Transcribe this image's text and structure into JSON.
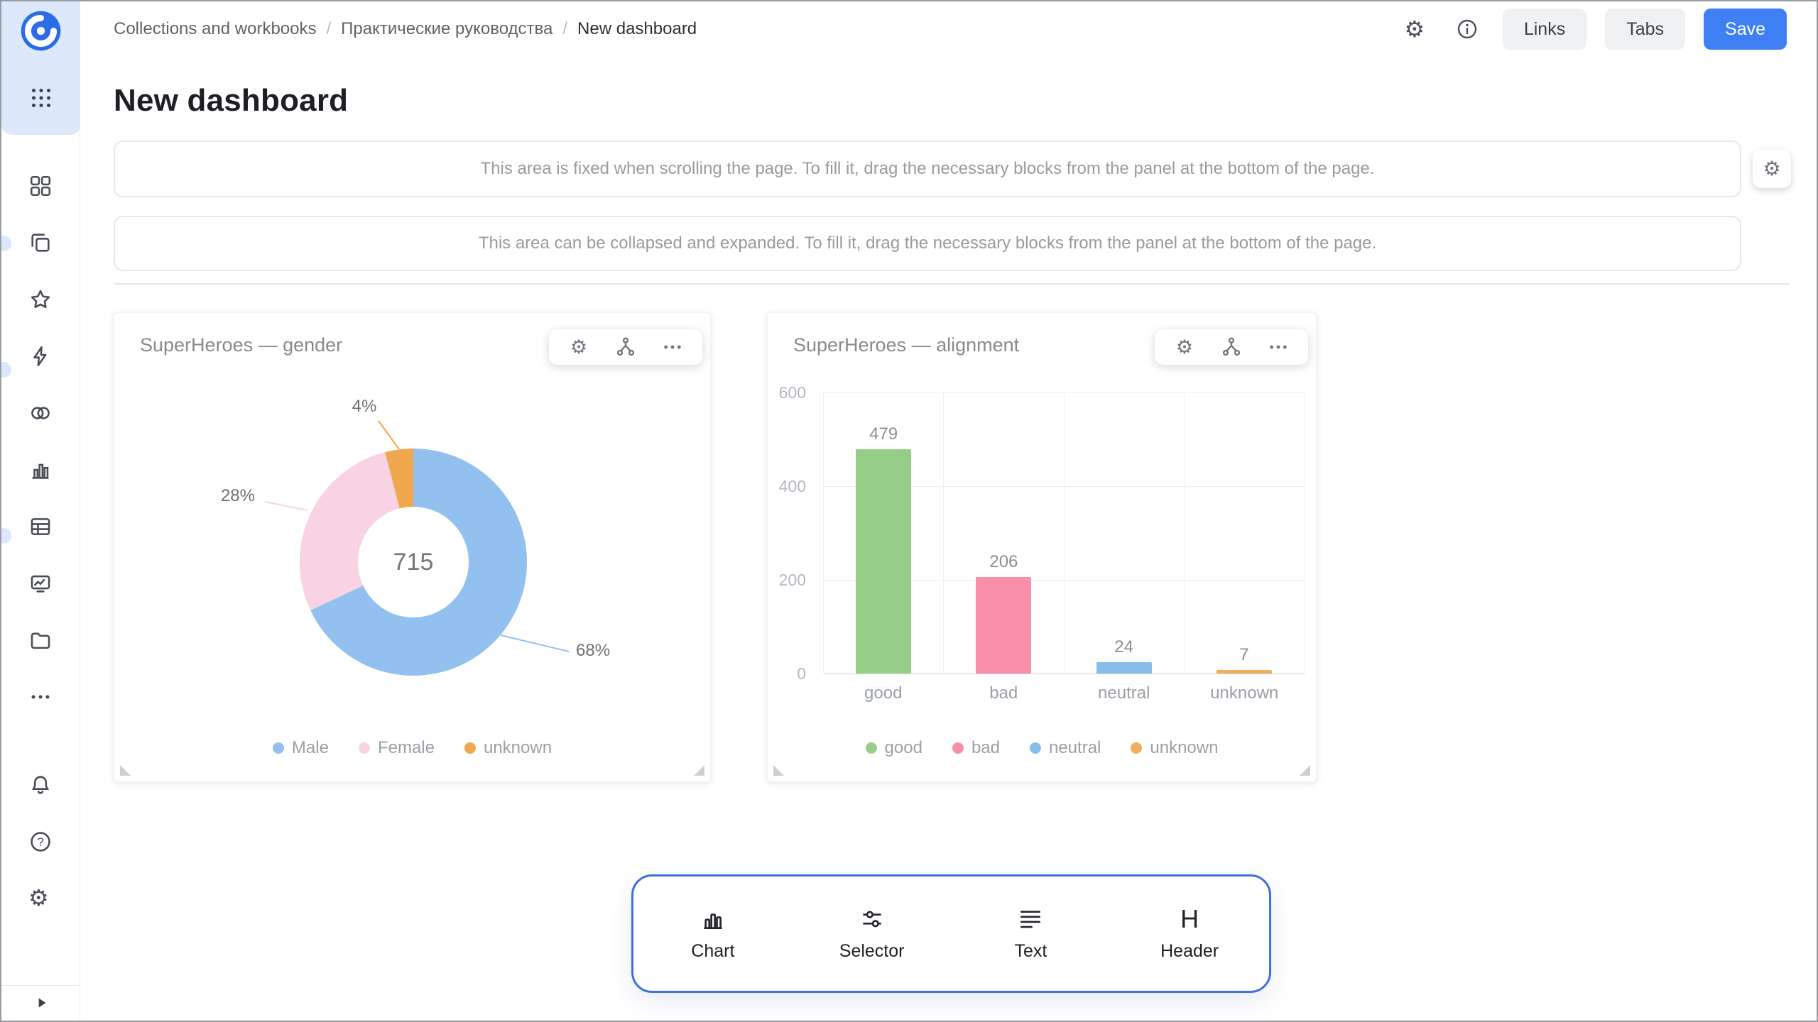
{
  "topbar": {
    "breadcrumbs": [
      "Collections and workbooks",
      "Практические руководства",
      "New dashboard"
    ],
    "separator": "/",
    "buttons": {
      "links": "Links",
      "tabs": "Tabs",
      "save": "Save"
    },
    "icons": [
      "settings-gear-icon",
      "info-icon"
    ]
  },
  "page": {
    "title": "New dashboard"
  },
  "placeholders": {
    "fixed_text": "This area is fixed when scrolling the page. To fill it, drag the necessary blocks from the panel at the bottom of the page.",
    "collapsible_text": "This area can be collapsed and expanded. To fill it, drag the necessary blocks from the panel at the bottom of the page."
  },
  "chart_data": [
    {
      "type": "pie",
      "subtype": "donut",
      "title": "SuperHeroes — gender",
      "categories": [
        "Male",
        "Female",
        "unknown"
      ],
      "values_percent": [
        68,
        28,
        4
      ],
      "center_total": 715,
      "colors": [
        "#92C1EF",
        "#F9D3E3",
        "#F0A84F"
      ],
      "legend_position": "bottom"
    },
    {
      "type": "bar",
      "title": "SuperHeroes — alignment",
      "categories": [
        "good",
        "bad",
        "neutral",
        "unknown"
      ],
      "values": [
        479,
        206,
        24,
        7
      ],
      "colors": [
        "#97CE87",
        "#F78FA9",
        "#88BCEA",
        "#F2AE5E"
      ],
      "ylim": [
        0,
        600
      ],
      "yticks": [
        0,
        200,
        400,
        600
      ],
      "grid": true,
      "legend_position": "bottom"
    }
  ],
  "widget_actions": [
    "gear-icon",
    "relations-icon",
    "more-icon"
  ],
  "bottom_panel": {
    "items": [
      {
        "icon": "chart-icon",
        "label": "Chart"
      },
      {
        "icon": "selector-icon",
        "label": "Selector"
      },
      {
        "icon": "text-icon",
        "label": "Text"
      },
      {
        "icon": "header-icon",
        "label": "Header"
      }
    ]
  },
  "sidebar": {
    "icons": [
      "datalens-logo",
      "apps-grid-icon",
      "dashboards-icon",
      "collections-icon",
      "favorites-star-icon",
      "editor-lightning-icon",
      "services-icon",
      "charts-icon",
      "datasets-table-icon",
      "monitoring-icon",
      "storage-folder-icon",
      "more-icon",
      "notifications-bell-icon",
      "help-icon",
      "settings-gear-icon",
      "collapse-arrow-icon"
    ]
  },
  "colors": {
    "save_button": "#3E7FF4",
    "panel_border": "#3F6FE0",
    "logo": "#2B6DE8",
    "sidebar_highlight": "#DDE9FA"
  }
}
